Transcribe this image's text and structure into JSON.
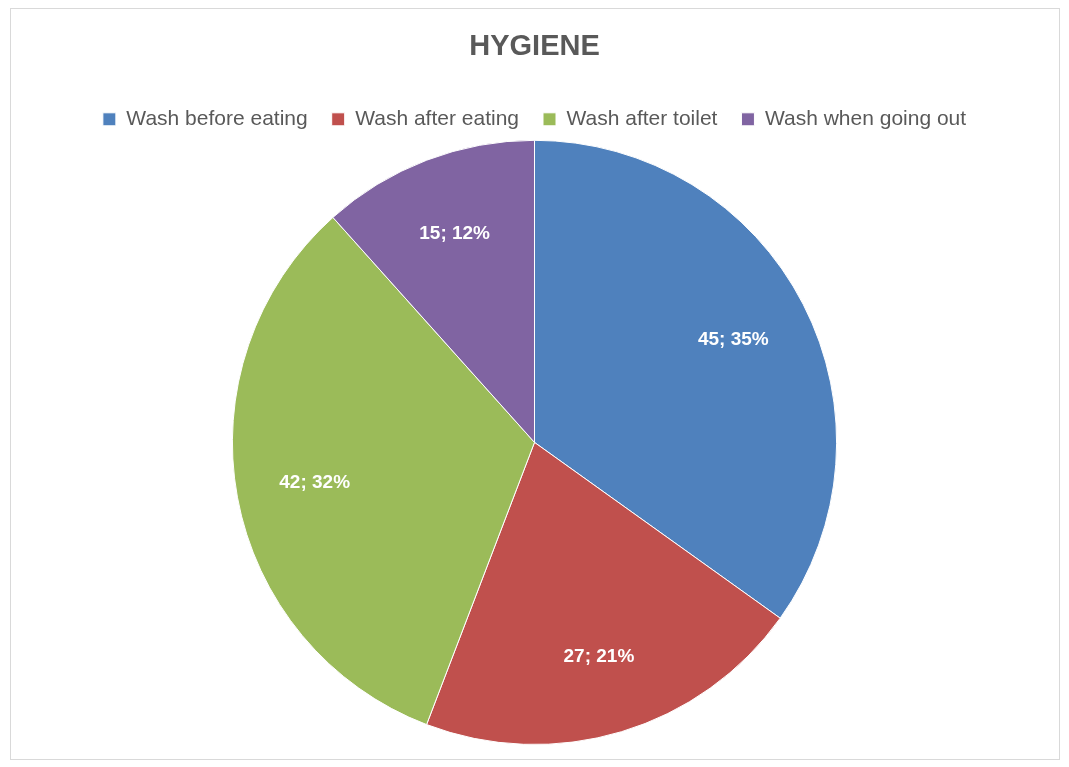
{
  "chart_data": {
    "type": "pie",
    "title": "HYGIENE",
    "categories": [
      "Wash before eating",
      "Wash after eating",
      "Wash after toilet",
      "Wash when going out"
    ],
    "values": [
      45,
      27,
      42,
      15
    ],
    "colors": [
      "#4f81bd",
      "#c0504d",
      "#9bbb59",
      "#8064a2"
    ],
    "value_labels": [
      "45; 35%",
      "27; 21%",
      "42; 32%",
      "15; 12%"
    ],
    "legend": "top"
  }
}
